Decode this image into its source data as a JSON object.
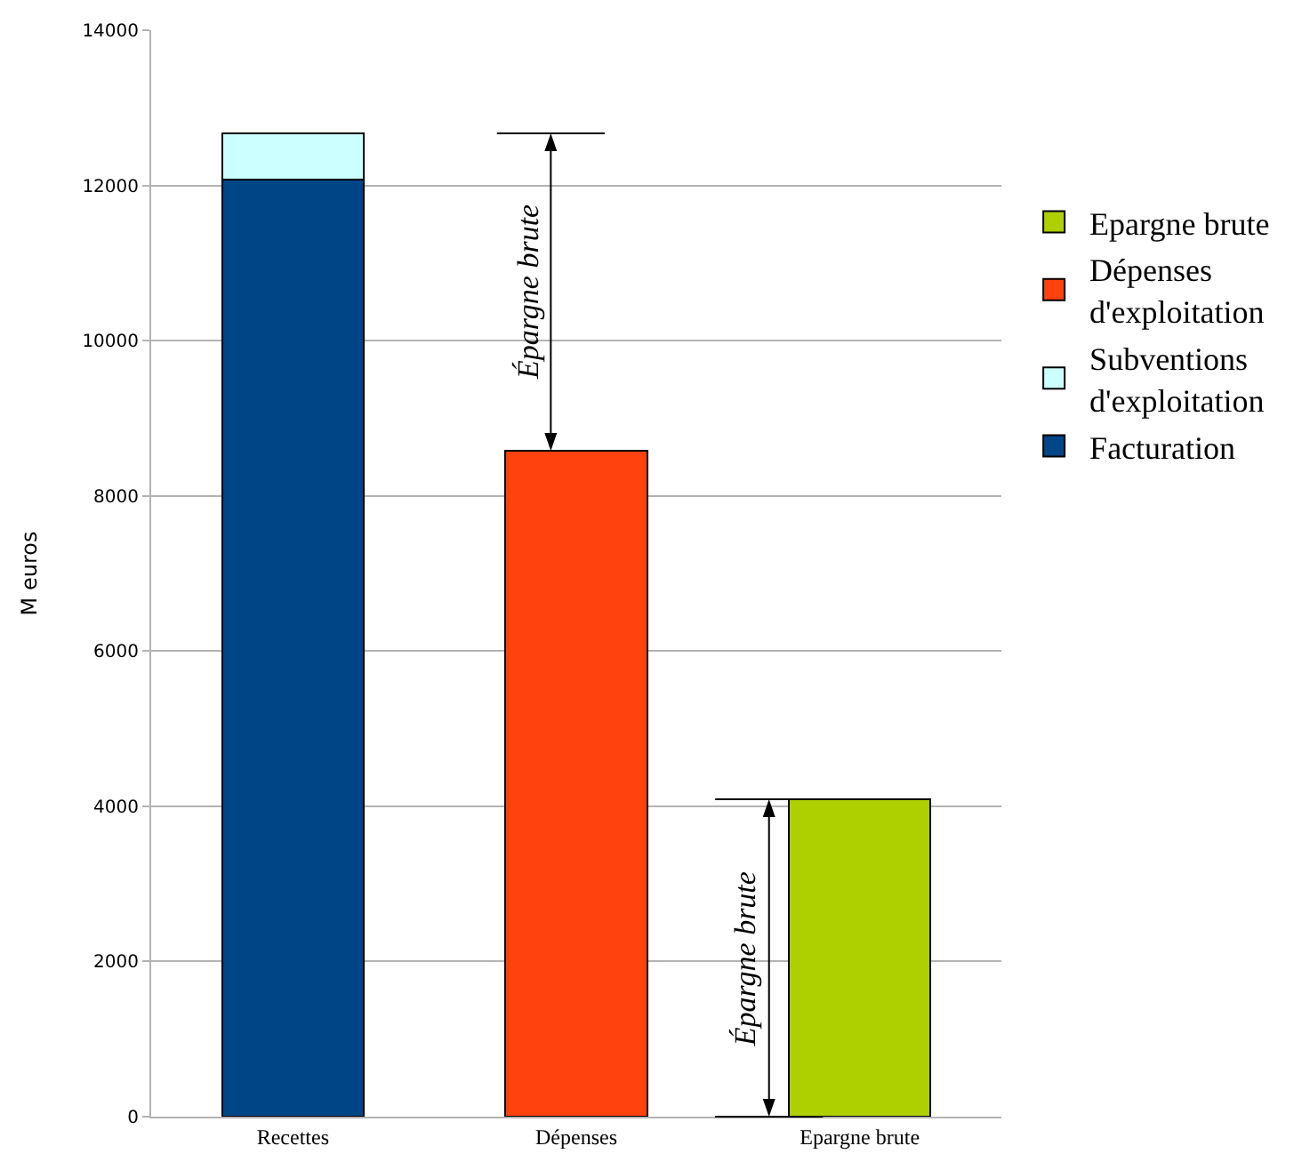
{
  "chart_data": {
    "type": "bar",
    "stacked": true,
    "categories": [
      "Recettes",
      "Dépenses",
      "Epargne brute"
    ],
    "series": [
      {
        "name": "Facturation",
        "color": "#004586",
        "values": [
          12080,
          null,
          null
        ]
      },
      {
        "name": "Subventions d'exploitation",
        "color": "#ccffff",
        "values": [
          590,
          null,
          null
        ]
      },
      {
        "name": "Dépenses d'exploitation",
        "color": "#ff420e",
        "values": [
          null,
          8580,
          null
        ]
      },
      {
        "name": "Epargne brute",
        "color": "#aecf00",
        "values": [
          null,
          null,
          4090
        ]
      }
    ],
    "ylabel": "M euros",
    "ylim": [
      0,
      14000
    ],
    "yticks": [
      0,
      2000,
      4000,
      6000,
      8000,
      10000,
      12000,
      14000
    ],
    "grid": "y",
    "legend": "right",
    "annotations": [
      "Épargne brute",
      "Épargne brute"
    ]
  }
}
